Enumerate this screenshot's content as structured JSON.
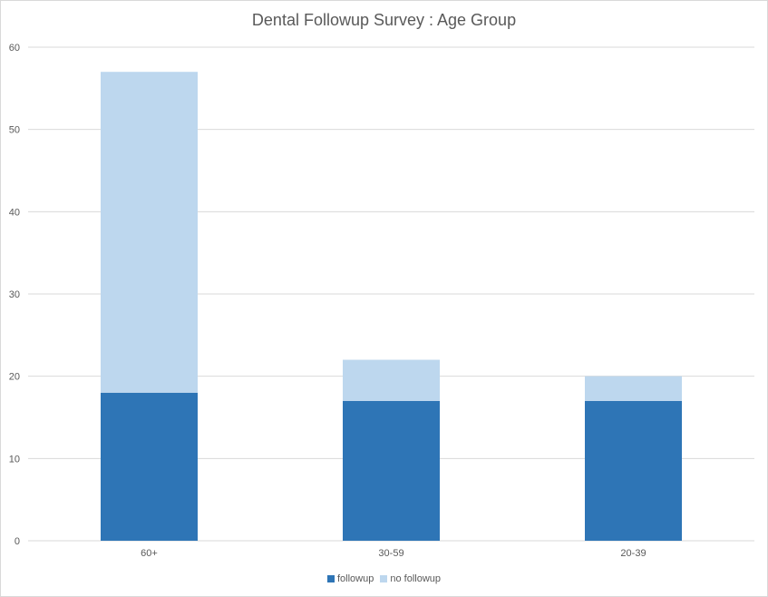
{
  "chart_data": {
    "type": "bar",
    "stacked": true,
    "title": "Dental Followup Survey : Age Group",
    "xlabel": "",
    "ylabel": "",
    "categories": [
      "60+",
      "30-59",
      "20-39"
    ],
    "series": [
      {
        "name": "followup",
        "values": [
          18,
          17,
          17
        ],
        "color": "#2e75b6"
      },
      {
        "name": "no followup",
        "values": [
          39,
          5,
          3
        ],
        "color": "#bdd7ee"
      }
    ],
    "ylim": [
      0,
      60
    ],
    "yticks": [
      0,
      10,
      20,
      30,
      40,
      50,
      60
    ],
    "grid": true,
    "legend_position": "bottom"
  }
}
